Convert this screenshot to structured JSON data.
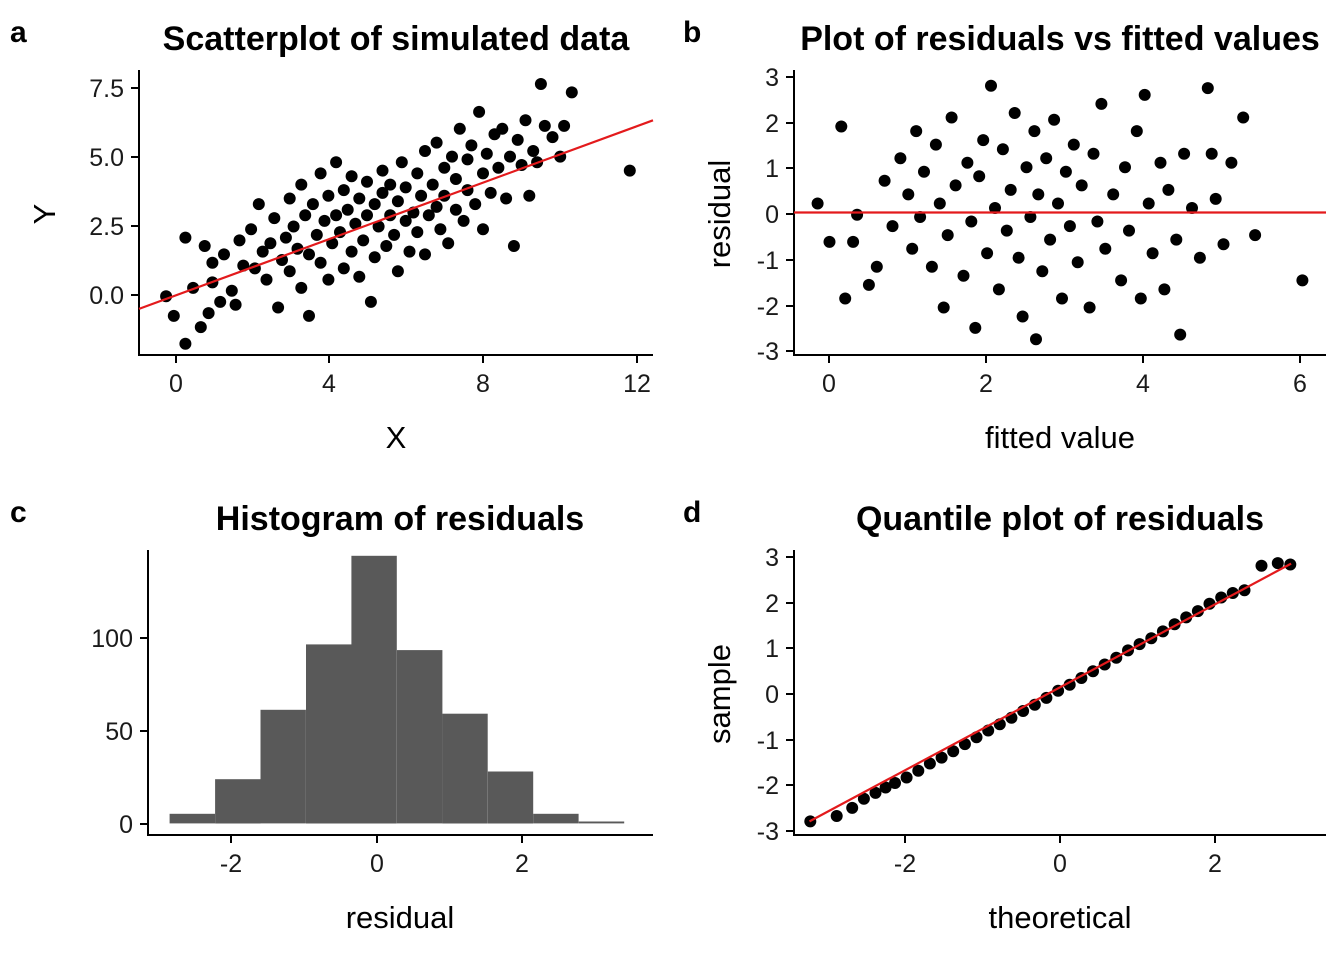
{
  "panels": {
    "a": {
      "tag": "a",
      "title": "Scatterplot of simulated data",
      "xlabel": "X",
      "ylabel": "Y",
      "xticks": [
        "0",
        "4",
        "8",
        "12"
      ],
      "yticks": [
        "0.0",
        "2.5",
        "5.0",
        "7.5"
      ]
    },
    "b": {
      "tag": "b",
      "title": "Plot of residuals vs fitted values",
      "xlabel": "fitted value",
      "ylabel": "residual",
      "xticks": [
        "0",
        "2",
        "4",
        "6"
      ],
      "yticks": [
        "-3",
        "-2",
        "-1",
        "0",
        "1",
        "2",
        "3"
      ]
    },
    "c": {
      "tag": "c",
      "title": "Histogram of residuals",
      "xlabel": "residual",
      "ylabel": "",
      "xticks": [
        "-2",
        "0",
        "2"
      ],
      "yticks": [
        "0",
        "50",
        "100"
      ]
    },
    "d": {
      "tag": "d",
      "title": "Quantile plot of residuals",
      "xlabel": "theoretical",
      "ylabel": "sample",
      "xticks": [
        "-2",
        "0",
        "2"
      ],
      "yticks": [
        "-3",
        "-2",
        "-1",
        "0",
        "1",
        "2",
        "3"
      ]
    }
  },
  "colors": {
    "points": "#000000",
    "fit_line": "#e31a1c",
    "bars": "#595959",
    "axis": "#000000"
  },
  "chart_data": [
    {
      "panel": "a",
      "type": "scatter",
      "title": "Scatterplot of simulated data",
      "xlabel": "X",
      "ylabel": "Y",
      "xlim": [
        -0.9,
        12.4
      ],
      "ylim": [
        -2.1,
        8.1
      ],
      "fit_line": {
        "x": [
          -0.9,
          12.4
        ],
        "y": [
          -0.45,
          6.3
        ]
      },
      "points": [
        [
          -0.2,
          0.0
        ],
        [
          0.0,
          -0.7
        ],
        [
          0.3,
          2.1
        ],
        [
          0.3,
          -1.7
        ],
        [
          0.5,
          0.3
        ],
        [
          0.7,
          -1.1
        ],
        [
          0.9,
          -0.6
        ],
        [
          0.8,
          1.8
        ],
        [
          1.0,
          1.2
        ],
        [
          1.0,
          0.5
        ],
        [
          1.2,
          -0.2
        ],
        [
          1.3,
          1.5
        ],
        [
          1.5,
          0.2
        ],
        [
          1.6,
          -0.3
        ],
        [
          1.7,
          2.0
        ],
        [
          1.8,
          1.1
        ],
        [
          2.0,
          2.4
        ],
        [
          2.1,
          1.0
        ],
        [
          2.2,
          3.3
        ],
        [
          2.3,
          1.6
        ],
        [
          2.4,
          0.6
        ],
        [
          2.5,
          1.9
        ],
        [
          2.6,
          2.8
        ],
        [
          2.7,
          -0.4
        ],
        [
          2.8,
          1.3
        ],
        [
          2.9,
          2.1
        ],
        [
          3.0,
          3.5
        ],
        [
          3.0,
          0.9
        ],
        [
          3.1,
          2.5
        ],
        [
          3.2,
          1.7
        ],
        [
          3.3,
          4.0
        ],
        [
          3.3,
          0.3
        ],
        [
          3.4,
          2.9
        ],
        [
          3.5,
          1.5
        ],
        [
          3.5,
          -0.7
        ],
        [
          3.6,
          3.3
        ],
        [
          3.7,
          2.2
        ],
        [
          3.8,
          4.4
        ],
        [
          3.8,
          1.2
        ],
        [
          3.9,
          2.7
        ],
        [
          4.0,
          3.6
        ],
        [
          4.0,
          0.6
        ],
        [
          4.1,
          1.9
        ],
        [
          4.2,
          4.8
        ],
        [
          4.2,
          2.9
        ],
        [
          4.3,
          2.3
        ],
        [
          4.4,
          3.8
        ],
        [
          4.4,
          1.0
        ],
        [
          4.5,
          3.1
        ],
        [
          4.6,
          1.6
        ],
        [
          4.6,
          4.3
        ],
        [
          4.7,
          2.6
        ],
        [
          4.8,
          3.5
        ],
        [
          4.8,
          0.7
        ],
        [
          4.9,
          2.0
        ],
        [
          5.0,
          4.1
        ],
        [
          5.0,
          2.9
        ],
        [
          5.1,
          -0.2
        ],
        [
          5.2,
          3.3
        ],
        [
          5.2,
          1.4
        ],
        [
          5.3,
          2.5
        ],
        [
          5.4,
          4.5
        ],
        [
          5.4,
          3.7
        ],
        [
          5.5,
          1.8
        ],
        [
          5.6,
          2.9
        ],
        [
          5.6,
          4.0
        ],
        [
          5.7,
          2.2
        ],
        [
          5.8,
          3.4
        ],
        [
          5.8,
          0.9
        ],
        [
          5.9,
          4.8
        ],
        [
          6.0,
          2.7
        ],
        [
          6.0,
          3.9
        ],
        [
          6.1,
          1.6
        ],
        [
          6.2,
          3.0
        ],
        [
          6.3,
          4.4
        ],
        [
          6.3,
          2.3
        ],
        [
          6.4,
          3.6
        ],
        [
          6.5,
          5.2
        ],
        [
          6.5,
          1.5
        ],
        [
          6.6,
          2.9
        ],
        [
          6.7,
          4.0
        ],
        [
          6.8,
          3.2
        ],
        [
          6.8,
          5.5
        ],
        [
          6.9,
          2.4
        ],
        [
          7.0,
          4.6
        ],
        [
          7.0,
          3.6
        ],
        [
          7.1,
          1.9
        ],
        [
          7.2,
          5.0
        ],
        [
          7.3,
          3.1
        ],
        [
          7.3,
          4.2
        ],
        [
          7.4,
          6.0
        ],
        [
          7.5,
          2.7
        ],
        [
          7.6,
          4.9
        ],
        [
          7.6,
          3.8
        ],
        [
          7.7,
          5.4
        ],
        [
          7.8,
          3.3
        ],
        [
          7.9,
          6.6
        ],
        [
          8.0,
          4.4
        ],
        [
          8.0,
          2.4
        ],
        [
          8.1,
          5.1
        ],
        [
          8.2,
          3.7
        ],
        [
          8.3,
          5.8
        ],
        [
          8.4,
          4.6
        ],
        [
          8.5,
          6.0
        ],
        [
          8.6,
          3.5
        ],
        [
          8.7,
          5.0
        ],
        [
          8.8,
          1.8
        ],
        [
          8.9,
          5.6
        ],
        [
          9.0,
          4.7
        ],
        [
          9.1,
          6.3
        ],
        [
          9.2,
          3.6
        ],
        [
          9.3,
          5.2
        ],
        [
          9.4,
          4.8
        ],
        [
          9.5,
          7.6
        ],
        [
          9.6,
          6.1
        ],
        [
          9.8,
          5.7
        ],
        [
          10.0,
          5.0
        ],
        [
          10.1,
          6.1
        ],
        [
          10.3,
          7.3
        ],
        [
          11.8,
          4.5
        ]
      ]
    },
    {
      "panel": "b",
      "type": "scatter",
      "title": "Plot of residuals vs fitted values",
      "xlabel": "fitted value",
      "ylabel": "residual",
      "xlim": [
        -0.45,
        6.3
      ],
      "ylim": [
        -3.15,
        3.15
      ],
      "fit_line": {
        "x": [
          -0.45,
          6.3
        ],
        "y": [
          0,
          0
        ]
      },
      "points": [
        [
          -0.15,
          0.2
        ],
        [
          0.0,
          -0.65
        ],
        [
          0.15,
          1.9
        ],
        [
          0.2,
          -1.9
        ],
        [
          0.3,
          -0.65
        ],
        [
          0.35,
          -0.05
        ],
        [
          0.5,
          -1.6
        ],
        [
          0.6,
          -1.2
        ],
        [
          0.7,
          0.7
        ],
        [
          0.8,
          -0.3
        ],
        [
          0.9,
          1.2
        ],
        [
          1.0,
          0.4
        ],
        [
          1.05,
          -0.8
        ],
        [
          1.1,
          1.8
        ],
        [
          1.15,
          -0.1
        ],
        [
          1.2,
          0.9
        ],
        [
          1.3,
          -1.2
        ],
        [
          1.35,
          1.5
        ],
        [
          1.4,
          0.2
        ],
        [
          1.45,
          -2.1
        ],
        [
          1.5,
          -0.5
        ],
        [
          1.55,
          2.1
        ],
        [
          1.6,
          0.6
        ],
        [
          1.7,
          -1.4
        ],
        [
          1.75,
          1.1
        ],
        [
          1.8,
          -0.2
        ],
        [
          1.85,
          -2.55
        ],
        [
          1.9,
          0.8
        ],
        [
          1.95,
          1.6
        ],
        [
          2.0,
          -0.9
        ],
        [
          2.05,
          2.8
        ],
        [
          2.1,
          0.1
        ],
        [
          2.15,
          -1.7
        ],
        [
          2.2,
          1.4
        ],
        [
          2.25,
          -0.4
        ],
        [
          2.3,
          0.5
        ],
        [
          2.35,
          2.2
        ],
        [
          2.4,
          -1.0
        ],
        [
          2.45,
          -2.3
        ],
        [
          2.5,
          1.0
        ],
        [
          2.55,
          -0.1
        ],
        [
          2.6,
          1.8
        ],
        [
          2.62,
          -2.8
        ],
        [
          2.65,
          0.4
        ],
        [
          2.7,
          -1.3
        ],
        [
          2.75,
          1.2
        ],
        [
          2.8,
          -0.6
        ],
        [
          2.85,
          2.05
        ],
        [
          2.9,
          0.2
        ],
        [
          2.95,
          -1.9
        ],
        [
          3.0,
          0.9
        ],
        [
          3.05,
          -0.3
        ],
        [
          3.1,
          1.5
        ],
        [
          3.15,
          -1.1
        ],
        [
          3.2,
          0.6
        ],
        [
          3.3,
          -2.1
        ],
        [
          3.35,
          1.3
        ],
        [
          3.4,
          -0.2
        ],
        [
          3.45,
          2.4
        ],
        [
          3.5,
          -0.8
        ],
        [
          3.6,
          0.4
        ],
        [
          3.7,
          -1.5
        ],
        [
          3.75,
          1.0
        ],
        [
          3.8,
          -0.4
        ],
        [
          3.9,
          1.8
        ],
        [
          3.95,
          -1.9
        ],
        [
          4.0,
          2.6
        ],
        [
          4.05,
          0.2
        ],
        [
          4.1,
          -0.9
        ],
        [
          4.2,
          1.1
        ],
        [
          4.25,
          -1.7
        ],
        [
          4.3,
          0.5
        ],
        [
          4.4,
          -0.6
        ],
        [
          4.45,
          -2.7
        ],
        [
          4.5,
          1.3
        ],
        [
          4.6,
          0.1
        ],
        [
          4.7,
          -1.0
        ],
        [
          4.8,
          2.75
        ],
        [
          4.85,
          1.3
        ],
        [
          4.9,
          0.3
        ],
        [
          5.0,
          -0.7
        ],
        [
          5.1,
          1.1
        ],
        [
          5.25,
          2.1
        ],
        [
          5.4,
          -0.5
        ],
        [
          6.0,
          -1.5
        ]
      ]
    },
    {
      "panel": "c",
      "type": "bar",
      "title": "Histogram of residuals",
      "xlabel": "residual",
      "ylabel": "",
      "xlim": [
        -3.15,
        3.85
      ],
      "ylim": [
        -6,
        142
      ],
      "bin_edges": [
        -2.85,
        -2.22,
        -1.59,
        -0.96,
        -0.33,
        0.3,
        0.93,
        1.56,
        2.19,
        2.82,
        3.45
      ],
      "values": [
        5,
        23,
        59,
        93,
        139,
        90,
        57,
        27,
        5,
        1
      ]
    },
    {
      "panel": "d",
      "type": "scatter",
      "title": "Quantile plot of residuals",
      "xlabel": "theoretical",
      "ylabel": "sample",
      "xlim": [
        -3.3,
        3.55
      ],
      "ylim": [
        -3.15,
        3.15
      ],
      "fit_line": {
        "x": [
          -3.1,
          3.1
        ],
        "y": [
          -2.85,
          2.85
        ]
      },
      "points": [
        [
          -3.09,
          -2.85
        ],
        [
          -2.75,
          -2.73
        ],
        [
          -2.55,
          -2.55
        ],
        [
          -2.4,
          -2.35
        ],
        [
          -2.25,
          -2.22
        ],
        [
          -2.12,
          -2.1
        ],
        [
          -2.0,
          -2.0
        ],
        [
          -1.85,
          -1.88
        ],
        [
          -1.7,
          -1.73
        ],
        [
          -1.55,
          -1.57
        ],
        [
          -1.4,
          -1.44
        ],
        [
          -1.25,
          -1.3
        ],
        [
          -1.1,
          -1.14
        ],
        [
          -0.95,
          -0.99
        ],
        [
          -0.8,
          -0.84
        ],
        [
          -0.65,
          -0.7
        ],
        [
          -0.5,
          -0.56
        ],
        [
          -0.35,
          -0.41
        ],
        [
          -0.2,
          -0.27
        ],
        [
          -0.05,
          -0.12
        ],
        [
          0.1,
          0.04
        ],
        [
          0.25,
          0.17
        ],
        [
          0.4,
          0.32
        ],
        [
          0.55,
          0.47
        ],
        [
          0.7,
          0.62
        ],
        [
          0.85,
          0.77
        ],
        [
          1.0,
          0.93
        ],
        [
          1.15,
          1.07
        ],
        [
          1.3,
          1.2
        ],
        [
          1.45,
          1.35
        ],
        [
          1.6,
          1.51
        ],
        [
          1.75,
          1.66
        ],
        [
          1.9,
          1.8
        ],
        [
          2.05,
          1.96
        ],
        [
          2.2,
          2.1
        ],
        [
          2.35,
          2.2
        ],
        [
          2.5,
          2.26
        ],
        [
          2.72,
          2.8
        ],
        [
          2.93,
          2.86
        ],
        [
          3.09,
          2.83
        ]
      ]
    }
  ]
}
